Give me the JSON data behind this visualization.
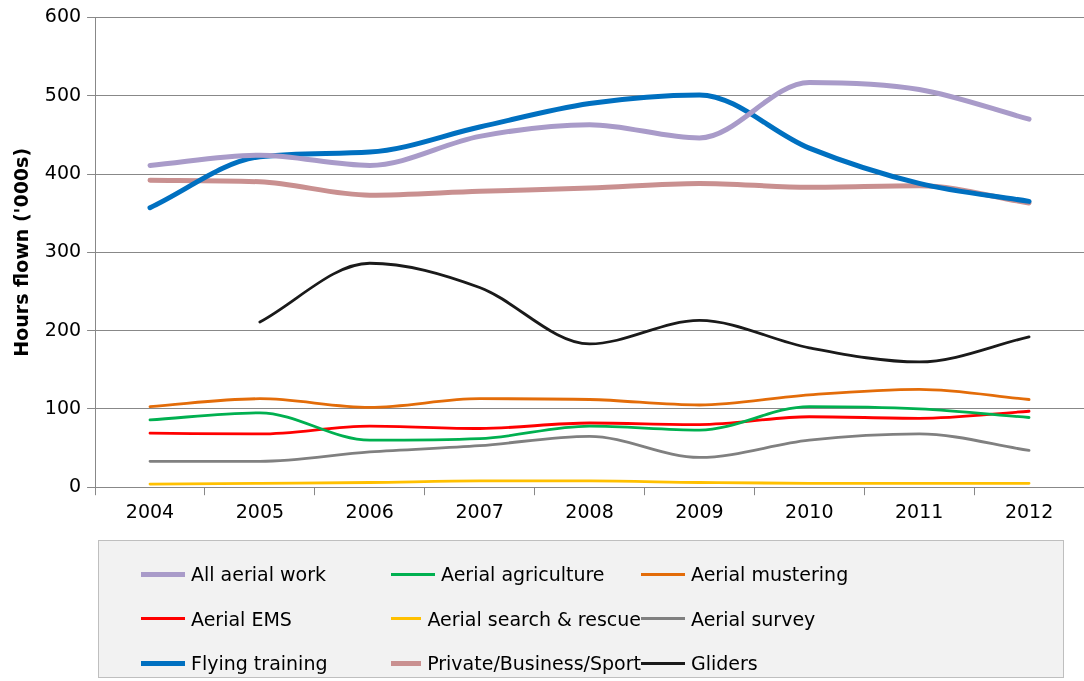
{
  "chart_data": {
    "type": "line",
    "ylabel": "Hours flown ('000s)",
    "categories": [
      "2004",
      "2005",
      "2006",
      "2007",
      "2008",
      "2009",
      "2010",
      "2011",
      "2012"
    ],
    "ylim": [
      0,
      600
    ],
    "yticks": [
      0,
      100,
      200,
      300,
      400,
      500,
      600
    ],
    "grid": "y",
    "legend": "bottom",
    "marker": "none",
    "line_style": "solid",
    "series": [
      {
        "name": "All aerial work",
        "color": "#a99bc9",
        "values": [
          411,
          424,
          411,
          448,
          463,
          446,
          517,
          508,
          470
        ]
      },
      {
        "name": "Aerial agriculture",
        "color": "#00b050",
        "values": [
          86,
          95,
          60,
          62,
          78,
          73,
          103,
          100,
          89
        ]
      },
      {
        "name": "Aerial mustering",
        "color": "#e36c09",
        "values": [
          103,
          113,
          102,
          113,
          112,
          105,
          118,
          125,
          112
        ]
      },
      {
        "name": "Aerial EMS",
        "color": "#ff0000",
        "values": [
          69,
          68,
          78,
          75,
          82,
          80,
          90,
          88,
          97
        ]
      },
      {
        "name": "Aerial search & rescue",
        "color": "#ffc000",
        "values": [
          4,
          5,
          6,
          8,
          8,
          6,
          5,
          5,
          5
        ]
      },
      {
        "name": "Aerial survey",
        "color": "#808080",
        "values": [
          33,
          33,
          45,
          53,
          65,
          38,
          60,
          68,
          47
        ]
      },
      {
        "name": "Flying training",
        "color": "#0070c0",
        "values": [
          357,
          422,
          428,
          460,
          490,
          501,
          433,
          388,
          365
        ]
      },
      {
        "name": "Private/Business/Sport",
        "color": "#c99090",
        "values": [
          392,
          390,
          373,
          378,
          382,
          388,
          383,
          385,
          363
        ]
      },
      {
        "name": "Gliders",
        "color": "#1a1a1a",
        "values": [
          null,
          211,
          286,
          255,
          183,
          213,
          178,
          160,
          192
        ]
      }
    ]
  }
}
